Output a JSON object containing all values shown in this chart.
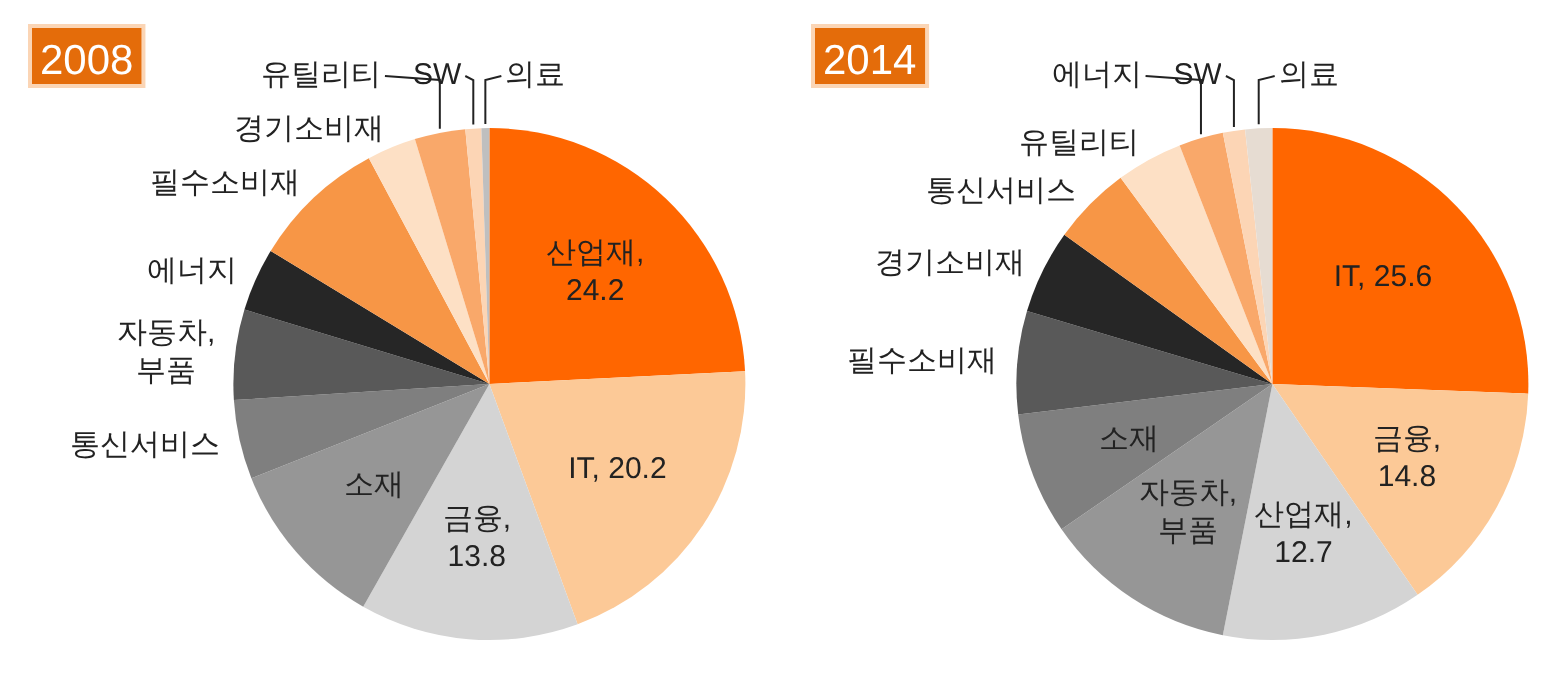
{
  "chart_data": [
    {
      "type": "pie",
      "title": "2008",
      "categories": [
        "산업재",
        "IT",
        "금융",
        "소재",
        "통신서비스",
        "자동차, 부품",
        "에너지",
        "필수소비재",
        "경기소비재",
        "유틸리티",
        "SW",
        "의료"
      ],
      "values": [
        24.2,
        20.2,
        13.8,
        10.8,
        5.0,
        5.7,
        4.0,
        8.5,
        3.1,
        3.2,
        1.0,
        0.5
      ],
      "colors": [
        "#ff6600",
        "#fcc997",
        "#d4d4d4",
        "#969696",
        "#7f7f7f",
        "#595959",
        "#262626",
        "#f79646",
        "#fde0c5",
        "#f9a86a",
        "#fcd5b5",
        "#bfbfbf"
      ],
      "value_labels": [
        ", 24.2",
        ", 20.2",
        ", 13.8",
        null,
        null,
        null,
        null,
        null,
        null,
        null,
        null,
        null
      ]
    },
    {
      "type": "pie",
      "title": "2014",
      "categories": [
        "IT",
        "금융",
        "산업재",
        "자동차, 부품",
        "소재",
        "필수소비재",
        "경기소비재",
        "통신서비스",
        "유틸리티",
        "에너지",
        "SW",
        "의료"
      ],
      "values": [
        25.6,
        14.8,
        12.7,
        12.3,
        7.7,
        6.5,
        5.3,
        5.0,
        4.2,
        2.8,
        1.4,
        1.7
      ],
      "colors": [
        "#ff6600",
        "#fcc997",
        "#d4d4d4",
        "#969696",
        "#7f7f7f",
        "#595959",
        "#262626",
        "#f79646",
        "#fde0c5",
        "#f9a86a",
        "#fcd5b5",
        "#e6dcd2"
      ],
      "value_labels": [
        ", 25.6",
        ", 14.8",
        ", 12.7",
        null,
        null,
        null,
        null,
        null,
        null,
        null,
        null,
        null
      ]
    }
  ]
}
